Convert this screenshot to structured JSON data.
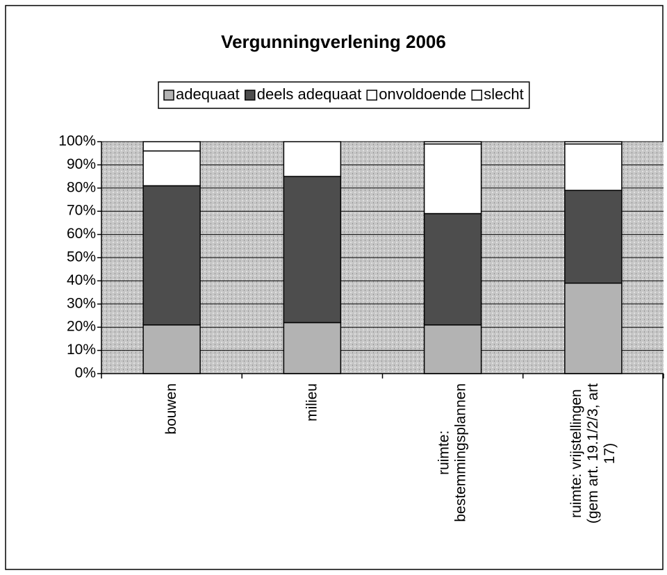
{
  "chart_data": {
    "type": "bar",
    "stacked": true,
    "title": "Vergunningverlening 2006",
    "categories": [
      "bouwen",
      "milieu",
      "ruimte:\nbestemmingsplannen",
      "ruimte: vrijstellingen\n(gem art. 19.1/2/3, art\n17)"
    ],
    "series": [
      {
        "name": "adequaat",
        "color": "#b3b3b3",
        "values": [
          21,
          22,
          21,
          39
        ]
      },
      {
        "name": "deels adequaat",
        "color": "#4d4d4d",
        "values": [
          60,
          63,
          48,
          40
        ]
      },
      {
        "name": "onvoldoende",
        "color": "#ffffff",
        "values": [
          15,
          15,
          30,
          20
        ]
      },
      {
        "name": "slecht",
        "color": "#ffffff",
        "values": [
          4,
          0,
          1,
          1
        ]
      }
    ],
    "ylim": [
      0,
      100
    ],
    "yticks": [
      {
        "value": 0,
        "label": "0%"
      },
      {
        "value": 10,
        "label": "10%"
      },
      {
        "value": 20,
        "label": "20%"
      },
      {
        "value": 30,
        "label": "30%"
      },
      {
        "value": 40,
        "label": "40%"
      },
      {
        "value": 50,
        "label": "50%"
      },
      {
        "value": 60,
        "label": "60%"
      },
      {
        "value": 70,
        "label": "70%"
      },
      {
        "value": 80,
        "label": "80%"
      },
      {
        "value": 90,
        "label": "90%"
      },
      {
        "value": 100,
        "label": "100%"
      }
    ],
    "grid": true,
    "plot_background": "#c6c6c6",
    "legend": "top"
  }
}
